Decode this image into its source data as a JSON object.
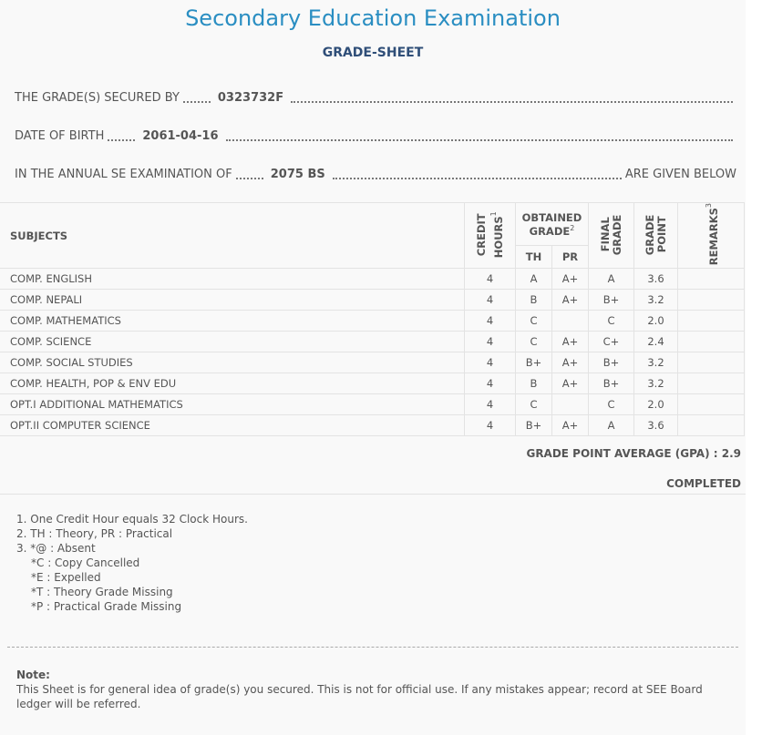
{
  "header": {
    "title": "Secondary Education Examination",
    "subtitle": "GRADE-SHEET"
  },
  "info": [
    {
      "label": "THE GRADE(S) SECURED BY",
      "value": "0323732F"
    },
    {
      "label": "DATE OF BIRTH",
      "value": "2061-04-16"
    },
    {
      "label": "IN THE ANNUAL SE EXAMINATION OF",
      "value": "2075 BS",
      "suffix": "ARE GIVEN BELOW"
    }
  ],
  "table": {
    "headers": {
      "subjects": "SUBJECTS",
      "credit": {
        "text": "CREDIT HOURS",
        "note": "1"
      },
      "obtained": {
        "text": "OBTAINED GRADE",
        "note": "2"
      },
      "th": "TH",
      "pr": "PR",
      "final": "FINAL GRADE",
      "point": "GRADE POINT",
      "remarks": {
        "text": "REMARKS",
        "note": "3"
      }
    },
    "rows": [
      [
        "COMP. ENGLISH",
        "4",
        "A",
        "A+",
        "A",
        "3.6"
      ],
      [
        "COMP. NEPALI",
        "4",
        "B",
        "A+",
        "B+",
        "3.2"
      ],
      [
        "COMP. MATHEMATICS",
        "4",
        "C",
        null,
        "C",
        "2.0"
      ],
      [
        "COMP. SCIENCE",
        "4",
        "C",
        "A+",
        "C+",
        "2.4"
      ],
      [
        "COMP. SOCIAL STUDIES",
        "4",
        "B+",
        "A+",
        "B+",
        "3.2"
      ],
      [
        "COMP. HEALTH, POP & ENV EDU",
        "4",
        "B",
        "A+",
        "B+",
        "3.2"
      ],
      [
        "OPT.I ADDITIONAL MATHEMATICS",
        "4",
        "C",
        null,
        "C",
        "2.0"
      ],
      [
        "OPT.II COMPUTER SCIENCE",
        "4",
        "B+",
        "A+",
        "A",
        "3.6"
      ]
    ]
  },
  "gpa": {
    "label": "GRADE POINT AVERAGE (GPA) :",
    "value": "2.9"
  },
  "status": "COMPLETED",
  "footnotes": [
    "1. One Credit Hour equals 32 Clock Hours.",
    "2. TH : Theory, PR : Practical",
    "3. *@ : Absent",
    "*C : Copy Cancelled",
    "*E : Expelled",
    "*T : Theory Grade Missing",
    "*P : Practical Grade Missing"
  ],
  "note": {
    "title": "Note:",
    "text": "This Sheet is for general idea of grade(s) you secured. This is not for official use. If any mistakes appear; record at SEE Board ledger will be referred."
  }
}
